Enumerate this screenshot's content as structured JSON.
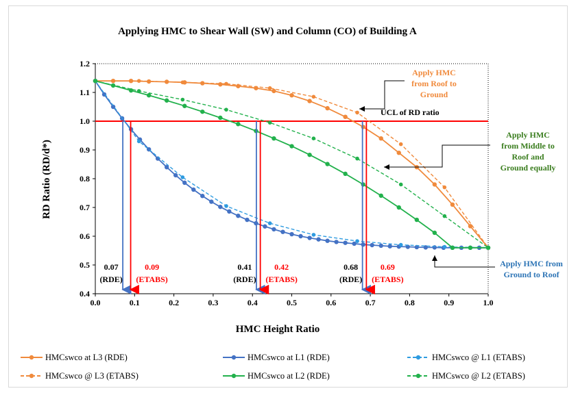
{
  "chart_data": {
    "type": "line",
    "title": "Applying HMC to Shear Wall (SW) and Column (CO) of Building A",
    "xlabel": "HMC Height Ratio",
    "ylabel": "RD Ratio (RD/d*)",
    "xlim": [
      0.0,
      1.0
    ],
    "ylim": [
      0.4,
      1.2
    ],
    "xticks": [
      "0.0",
      "0.1",
      "0.2",
      "0.3",
      "0.4",
      "0.5",
      "0.6",
      "0.7",
      "0.8",
      "0.9",
      "1.0"
    ],
    "yticks": [
      "0.4",
      "0.5",
      "0.6",
      "0.7",
      "0.8",
      "0.9",
      "1.0",
      "1.1",
      "1.2"
    ],
    "grid": false,
    "legend_position": "bottom",
    "ucl": {
      "value": 1.0,
      "label": "UCL of RD ratio",
      "color": "#ff0000"
    },
    "series": [
      {
        "name": "HMCswco at L3 (RDE)",
        "color": "#f08a3c",
        "style": "solid",
        "x": [
          0.0,
          0.0455,
          0.0909,
          0.1364,
          0.1818,
          0.2273,
          0.2727,
          0.3182,
          0.3636,
          0.4091,
          0.4545,
          0.5,
          0.5455,
          0.5909,
          0.6364,
          0.6818,
          0.7273,
          0.7727,
          0.8182,
          0.8636,
          0.9091,
          0.9545,
          1.0
        ],
        "y": [
          1.14,
          1.14,
          1.14,
          1.138,
          1.137,
          1.135,
          1.132,
          1.128,
          1.122,
          1.115,
          1.105,
          1.09,
          1.07,
          1.045,
          1.015,
          0.98,
          0.94,
          0.89,
          0.84,
          0.78,
          0.71,
          0.635,
          0.56
        ]
      },
      {
        "name": "HMCswco at L1 (RDE)",
        "color": "#4472c4",
        "style": "solid",
        "x": [
          0.0,
          0.0227,
          0.0455,
          0.0682,
          0.0909,
          0.1136,
          0.1364,
          0.1591,
          0.1818,
          0.2045,
          0.2273,
          0.25,
          0.2727,
          0.2955,
          0.3182,
          0.3409,
          0.3636,
          0.3864,
          0.4091,
          0.4318,
          0.4545,
          0.4773,
          0.5,
          0.5227,
          0.5455,
          0.5682,
          0.5909,
          0.6136,
          0.6364,
          0.6591,
          0.6818,
          0.7045,
          0.7273,
          0.75,
          0.7727,
          0.7955,
          0.8182,
          0.8409,
          0.8636,
          0.8864,
          0.9091,
          0.9318,
          0.9545,
          0.9773,
          1.0
        ],
        "y": [
          1.14,
          1.093,
          1.05,
          1.01,
          0.972,
          0.936,
          0.902,
          0.87,
          0.84,
          0.812,
          0.786,
          0.762,
          0.74,
          0.72,
          0.702,
          0.686,
          0.671,
          0.657,
          0.645,
          0.634,
          0.624,
          0.615,
          0.607,
          0.6,
          0.594,
          0.589,
          0.584,
          0.58,
          0.577,
          0.574,
          0.571,
          0.569,
          0.567,
          0.565,
          0.564,
          0.563,
          0.562,
          0.561,
          0.561,
          0.56,
          0.56,
          0.56,
          0.56,
          0.56,
          0.56
        ]
      },
      {
        "name": "HMCswco @ L1 (ETABS)",
        "color": "#2e9be0",
        "style": "dashed",
        "x": [
          0.0,
          0.1111,
          0.2222,
          0.3333,
          0.4444,
          0.5556,
          0.6667,
          0.7778,
          0.8889,
          1.0
        ],
        "y": [
          1.14,
          0.93,
          0.805,
          0.705,
          0.645,
          0.605,
          0.583,
          0.57,
          0.563,
          0.56
        ]
      },
      {
        "name": "HMCswco @ L3 (ETABS)",
        "color": "#f08a3c",
        "style": "dashed",
        "x": [
          0.0,
          0.1111,
          0.2222,
          0.3333,
          0.4444,
          0.5556,
          0.6667,
          0.7778,
          0.8889,
          1.0
        ],
        "y": [
          1.14,
          1.14,
          1.135,
          1.13,
          1.115,
          1.085,
          1.03,
          0.92,
          0.77,
          0.56
        ]
      },
      {
        "name": "HMCswco at L2 (RDE)",
        "color": "#22b14c",
        "style": "solid",
        "x": [
          0.0,
          0.0455,
          0.0909,
          0.1364,
          0.1818,
          0.2273,
          0.2727,
          0.3182,
          0.3636,
          0.4091,
          0.4545,
          0.5,
          0.5455,
          0.5909,
          0.6364,
          0.6818,
          0.7273,
          0.7727,
          0.8182,
          0.8636,
          0.9091,
          0.9545,
          1.0
        ],
        "y": [
          1.14,
          1.124,
          1.107,
          1.09,
          1.072,
          1.053,
          1.033,
          1.012,
          0.99,
          0.966,
          0.94,
          0.913,
          0.883,
          0.851,
          0.817,
          0.78,
          0.741,
          0.7,
          0.657,
          0.612,
          0.56,
          0.56,
          0.56
        ]
      },
      {
        "name": "HMCswco @ L2 (ETABS)",
        "color": "#22b14c",
        "style": "dashed",
        "x": [
          0.0,
          0.1111,
          0.2222,
          0.3333,
          0.4444,
          0.5556,
          0.6667,
          0.7778,
          0.8889,
          1.0
        ],
        "y": [
          1.14,
          1.105,
          1.075,
          1.04,
          0.995,
          0.94,
          0.87,
          0.78,
          0.67,
          0.56
        ]
      }
    ],
    "drops": [
      {
        "x": 0.07,
        "label": "0.07",
        "sub": "(RDE)",
        "color": "#4472c4"
      },
      {
        "x": 0.09,
        "label": "0.09",
        "sub": "(ETABS)",
        "color": "#ff0000"
      },
      {
        "x": 0.41,
        "label": "0.41",
        "sub": "(RDE)",
        "color": "#4472c4"
      },
      {
        "x": 0.42,
        "label": "0.42",
        "sub": "(ETABS)",
        "color": "#ff0000"
      },
      {
        "x": 0.68,
        "label": "0.68",
        "sub": "(RDE)",
        "color": "#4472c4"
      },
      {
        "x": 0.69,
        "label": "0.69",
        "sub": "(ETABS)",
        "color": "#ff0000"
      }
    ],
    "annotations": [
      {
        "lines": [
          "Apply HMC",
          "from Roof to",
          "Ground"
        ],
        "color": "#f08a3c"
      },
      {
        "lines": [
          "Apply HMC",
          "from Middle to",
          "Roof and",
          "Ground equally"
        ],
        "color": "#3a7d1e"
      },
      {
        "lines": [
          "Apply HMC from",
          "Ground to Roof"
        ],
        "color": "#2e75b6"
      }
    ]
  }
}
